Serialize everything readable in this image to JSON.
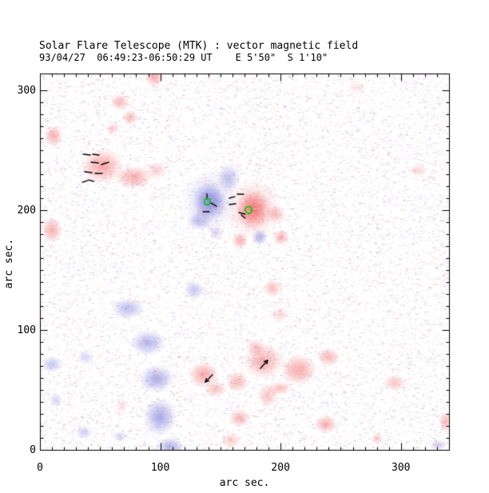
{
  "chart_data": {
    "type": "heatmap",
    "title": "Solar Flare Telescope (MTK) : vector magnetic field",
    "subtitle": "93/04/27  06:49:23-06:50:29 UT    E 5'50\"  S 1'10\"",
    "xlabel": "arc sec.",
    "ylabel": "arc sec.",
    "xlim": [
      0,
      340
    ],
    "ylim": [
      0,
      314
    ],
    "xticks": [
      0,
      100,
      200,
      300
    ],
    "yticks": [
      0,
      100,
      200,
      300
    ],
    "minor_tick_step": 10,
    "grid": false,
    "legend": "none",
    "colors": {
      "positive_polarity": "#F25C5C",
      "negative_polarity": "#6C6CD8",
      "marker": "#00CC00",
      "vector": "#000000",
      "axis": "#000000",
      "background": "#FFFFFF"
    },
    "blobs": [
      {
        "x": 95,
        "y": 310.5,
        "rx": 8,
        "ry": 8,
        "p": 1,
        "i": 0.5
      },
      {
        "x": 66.4,
        "y": 290,
        "rx": 8,
        "ry": 7,
        "p": 1,
        "i": 0.45
      },
      {
        "x": 75,
        "y": 277.3,
        "rx": 7,
        "ry": 7,
        "p": 1,
        "i": 0.4
      },
      {
        "x": 60.4,
        "y": 268,
        "rx": 6,
        "ry": 5,
        "p": 1,
        "i": 0.35
      },
      {
        "x": 11.3,
        "y": 262,
        "rx": 8,
        "ry": 9,
        "p": 1,
        "i": 0.5
      },
      {
        "x": 51.8,
        "y": 236.7,
        "rx": 18,
        "ry": 15,
        "p": 1,
        "i": 0.55
      },
      {
        "x": 77.7,
        "y": 227.3,
        "rx": 16,
        "ry": 10,
        "p": 1,
        "i": 0.5
      },
      {
        "x": 97,
        "y": 233.3,
        "rx": 9,
        "ry": 7,
        "p": 1,
        "i": 0.3
      },
      {
        "x": 10,
        "y": 183.3,
        "rx": 9,
        "ry": 11,
        "p": 1,
        "i": 0.5
      },
      {
        "x": 177.3,
        "y": 200.7,
        "rx": 15,
        "ry": 17,
        "p": 1,
        "i": 0.8
      },
      {
        "x": 177.3,
        "y": 200.7,
        "rx": 24,
        "ry": 26,
        "p": 1,
        "i": 0.28
      },
      {
        "x": 195.9,
        "y": 196.7,
        "rx": 9,
        "ry": 8,
        "p": 1,
        "i": 0.4
      },
      {
        "x": 166,
        "y": 174.7,
        "rx": 7,
        "ry": 7,
        "p": 1,
        "i": 0.5
      },
      {
        "x": 200.5,
        "y": 177.3,
        "rx": 7,
        "ry": 7,
        "p": 1,
        "i": 0.5
      },
      {
        "x": 314.1,
        "y": 233.3,
        "rx": 8,
        "ry": 6,
        "p": 1,
        "i": 0.25
      },
      {
        "x": 199.2,
        "y": 112.7,
        "rx": 8,
        "ry": 7,
        "p": 1,
        "i": 0.25
      },
      {
        "x": 193.2,
        "y": 134.7,
        "rx": 8,
        "ry": 8,
        "p": 1,
        "i": 0.4
      },
      {
        "x": 185.9,
        "y": 74,
        "rx": 17,
        "ry": 15,
        "p": 1,
        "i": 0.5
      },
      {
        "x": 136.1,
        "y": 62.7,
        "rx": 13,
        "ry": 11,
        "p": 1,
        "i": 0.55
      },
      {
        "x": 164,
        "y": 56.7,
        "rx": 10,
        "ry": 9,
        "p": 1,
        "i": 0.45
      },
      {
        "x": 215.1,
        "y": 66.7,
        "rx": 15,
        "ry": 13,
        "p": 1,
        "i": 0.55
      },
      {
        "x": 239.7,
        "y": 77.3,
        "rx": 10,
        "ry": 8,
        "p": 1,
        "i": 0.45
      },
      {
        "x": 166,
        "y": 26.7,
        "rx": 9,
        "ry": 8,
        "p": 1,
        "i": 0.45
      },
      {
        "x": 158.7,
        "y": 8,
        "rx": 9,
        "ry": 7,
        "p": 1,
        "i": 0.3
      },
      {
        "x": 237.7,
        "y": 21.3,
        "rx": 10,
        "ry": 8,
        "p": 1,
        "i": 0.5
      },
      {
        "x": 280.2,
        "y": 9.3,
        "rx": 5,
        "ry": 5,
        "p": 1,
        "i": 0.35
      },
      {
        "x": 294.8,
        "y": 56,
        "rx": 10,
        "ry": 7,
        "p": 1,
        "i": 0.35
      },
      {
        "x": 337.3,
        "y": 23.3,
        "rx": 6,
        "ry": 9,
        "p": 1,
        "i": 0.45
      },
      {
        "x": 263.6,
        "y": 302,
        "rx": 9,
        "ry": 6,
        "p": 1,
        "i": 0.15
      },
      {
        "x": 189.2,
        "y": 45.3,
        "rx": 8,
        "ry": 10,
        "p": 1,
        "i": 0.4
      },
      {
        "x": 179.3,
        "y": 85.3,
        "rx": 8,
        "ry": 8,
        "p": 1,
        "i": 0.35
      },
      {
        "x": 146.1,
        "y": 50.7,
        "rx": 10,
        "ry": 7,
        "p": 1,
        "i": 0.4
      },
      {
        "x": 199.2,
        "y": 51.3,
        "rx": 10,
        "ry": 6,
        "p": 1,
        "i": 0.4
      },
      {
        "x": 68.4,
        "y": 36.7,
        "rx": 5,
        "ry": 7,
        "p": 1,
        "i": 0.2
      },
      {
        "x": 140.8,
        "y": 207.3,
        "rx": 14,
        "ry": 16,
        "p": -1,
        "i": 0.75
      },
      {
        "x": 140.8,
        "y": 207.3,
        "rx": 23,
        "ry": 27,
        "p": -1,
        "i": 0.28
      },
      {
        "x": 156.7,
        "y": 226.7,
        "rx": 10,
        "ry": 12,
        "p": -1,
        "i": 0.45
      },
      {
        "x": 132.8,
        "y": 191.3,
        "rx": 11,
        "ry": 8,
        "p": -1,
        "i": 0.45
      },
      {
        "x": 146.1,
        "y": 181.3,
        "rx": 6,
        "ry": 6,
        "p": -1,
        "i": 0.3
      },
      {
        "x": 182.6,
        "y": 177.3,
        "rx": 7,
        "ry": 7,
        "p": -1,
        "i": 0.5
      },
      {
        "x": 128.2,
        "y": 133.3,
        "rx": 9,
        "ry": 8,
        "p": -1,
        "i": 0.4
      },
      {
        "x": 73,
        "y": 118,
        "rx": 14,
        "ry": 9,
        "p": -1,
        "i": 0.45
      },
      {
        "x": 89.6,
        "y": 89.3,
        "rx": 15,
        "ry": 11,
        "p": -1,
        "i": 0.5
      },
      {
        "x": 97,
        "y": 59.3,
        "rx": 15,
        "ry": 12,
        "p": -1,
        "i": 0.55
      },
      {
        "x": 99.6,
        "y": 27.3,
        "rx": 14,
        "ry": 16,
        "p": -1,
        "i": 0.6
      },
      {
        "x": 108.2,
        "y": 2.7,
        "rx": 12,
        "ry": 8,
        "p": -1,
        "i": 0.55
      },
      {
        "x": 10,
        "y": 71.3,
        "rx": 9,
        "ry": 7,
        "p": -1,
        "i": 0.4
      },
      {
        "x": 13.3,
        "y": 41.3,
        "rx": 6,
        "ry": 6,
        "p": -1,
        "i": 0.3
      },
      {
        "x": 36.5,
        "y": 14.7,
        "rx": 7,
        "ry": 6,
        "p": -1,
        "i": 0.35
      },
      {
        "x": 66.4,
        "y": 11.3,
        "rx": 6,
        "ry": 5,
        "p": -1,
        "i": 0.3
      },
      {
        "x": 330.7,
        "y": 4,
        "rx": 7,
        "ry": 5,
        "p": -1,
        "i": 0.35
      },
      {
        "x": 37.8,
        "y": 77.3,
        "rx": 7,
        "ry": 5,
        "p": -1,
        "i": 0.3
      }
    ],
    "vectors": [
      {
        "x1": 35.9,
        "y1": 246.7,
        "x2": 41.8,
        "y2": 246
      },
      {
        "x1": 43.8,
        "y1": 246.7,
        "x2": 49.1,
        "y2": 246
      },
      {
        "x1": 42.5,
        "y1": 240,
        "x2": 48.5,
        "y2": 239.3
      },
      {
        "x1": 51.1,
        "y1": 238,
        "x2": 57.1,
        "y2": 240
      },
      {
        "x1": 37.2,
        "y1": 232,
        "x2": 43.2,
        "y2": 231.3
      },
      {
        "x1": 45.8,
        "y1": 230.7,
        "x2": 51.8,
        "y2": 230.7
      },
      {
        "x1": 35.2,
        "y1": 223.3,
        "x2": 39.8,
        "y2": 224.7
      },
      {
        "x1": 40.5,
        "y1": 225.3,
        "x2": 44.5,
        "y2": 224
      },
      {
        "x1": 138.8,
        "y1": 213.3,
        "x2": 138.8,
        "y2": 209.3
      },
      {
        "x1": 142.1,
        "y1": 206,
        "x2": 146.8,
        "y2": 203.3
      },
      {
        "x1": 135.5,
        "y1": 198.7,
        "x2": 140.8,
        "y2": 198.7
      },
      {
        "x1": 157.4,
        "y1": 210,
        "x2": 162,
        "y2": 211.3
      },
      {
        "x1": 164,
        "y1": 213.3,
        "x2": 169.3,
        "y2": 213.3
      },
      {
        "x1": 157.4,
        "y1": 204.7,
        "x2": 162.7,
        "y2": 205.3
      },
      {
        "x1": 165.3,
        "y1": 198,
        "x2": 170.6,
        "y2": 196.7
      },
      {
        "x1": 167.4,
        "y1": 196,
        "x2": 170.4,
        "y2": 193.3
      }
    ],
    "arrows": [
      {
        "x1": 143.4,
        "y1": 62.7,
        "x2": 137.5,
        "y2": 56.7
      },
      {
        "x1": 183.3,
        "y1": 68,
        "x2": 189.2,
        "y2": 74.7
      }
    ],
    "markers": [
      {
        "x": 139.1,
        "y": 207,
        "r": 2.8
      },
      {
        "x": 173.6,
        "y": 200.3,
        "r": 3
      }
    ]
  }
}
